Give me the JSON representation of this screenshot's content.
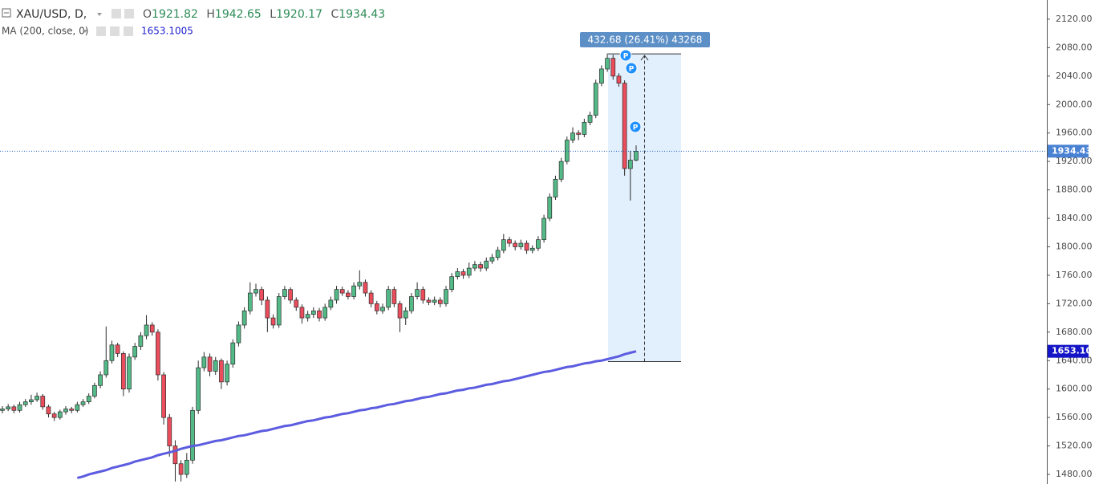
{
  "chart_data": {
    "type": "candlestick",
    "symbol": "XAU/USD, D,",
    "ohlc_labels": [
      "O",
      "H",
      "L",
      "C"
    ],
    "ma_name": "MA (200, close, 0)",
    "ma_price_label": "1653.10",
    "markers": [
      "P",
      "P",
      "P"
    ],
    "measure": {
      "from": 1638.6,
      "to": 2071.28,
      "label": "432.68 (26.41%) 43268"
    },
    "ylim": [
      1466.5,
      2147
    ],
    "yticks": [
      {
        "value": 1480,
        "label": "1480.00"
      },
      {
        "value": 1520,
        "label": "1520.00"
      },
      {
        "value": 1560,
        "label": "1560.00"
      },
      {
        "value": 1600,
        "label": "1600.00"
      },
      {
        "value": 1640,
        "label": "1640.00"
      },
      {
        "value": 1680,
        "label": "1680.00"
      },
      {
        "value": 1720,
        "label": "1720.00"
      },
      {
        "value": 1760,
        "label": "1760.00"
      },
      {
        "value": 1800,
        "label": "1800.00"
      },
      {
        "value": 1840,
        "label": "1840.00"
      },
      {
        "value": 1880,
        "label": "1880.00"
      },
      {
        "value": 1920,
        "label": "1920.00"
      },
      {
        "value": 1960,
        "label": "1960.00"
      },
      {
        "value": 2000,
        "label": "2000.00"
      },
      {
        "value": 2040,
        "label": "2040.00"
      },
      {
        "value": 2080,
        "label": "2080.00"
      },
      {
        "value": 2120,
        "label": "2120.00"
      }
    ],
    "up_color": "#53b987",
    "down_color": "#eb4d5c",
    "outline_color": "#2b2b2b",
    "series": [
      {
        "name": "XAU/USD",
        "values": [
          [
            1570,
            1576,
            1566,
            1572
          ],
          [
            1572,
            1579,
            1569,
            1575
          ],
          [
            1575,
            1578,
            1566,
            1570
          ],
          [
            1570,
            1582,
            1567,
            1578
          ],
          [
            1578,
            1586,
            1575,
            1582
          ],
          [
            1582,
            1592,
            1578,
            1585
          ],
          [
            1585,
            1595,
            1582,
            1590
          ],
          [
            1590,
            1593,
            1571,
            1575
          ],
          [
            1575,
            1578,
            1560,
            1565
          ],
          [
            1565,
            1568,
            1555,
            1560
          ],
          [
            1560,
            1571,
            1557,
            1568
          ],
          [
            1568,
            1576,
            1564,
            1572
          ],
          [
            1572,
            1575,
            1566,
            1570
          ],
          [
            1570,
            1582,
            1567,
            1578
          ],
          [
            1578,
            1586,
            1575,
            1582
          ],
          [
            1582,
            1594,
            1579,
            1590
          ],
          [
            1590,
            1609,
            1587,
            1605
          ],
          [
            1605,
            1625,
            1601,
            1620
          ],
          [
            1620,
            1688,
            1616,
            1640
          ],
          [
            1640,
            1668,
            1636,
            1662
          ],
          [
            1662,
            1665,
            1645,
            1650
          ],
          [
            1650,
            1653,
            1590,
            1600
          ],
          [
            1600,
            1650,
            1595,
            1645
          ],
          [
            1645,
            1665,
            1641,
            1660
          ],
          [
            1660,
            1680,
            1655,
            1675
          ],
          [
            1675,
            1704,
            1670,
            1690
          ],
          [
            1690,
            1694,
            1675,
            1680
          ],
          [
            1680,
            1684,
            1612,
            1620
          ],
          [
            1620,
            1624,
            1550,
            1560
          ],
          [
            1560,
            1565,
            1505,
            1520
          ],
          [
            1520,
            1528,
            1470,
            1495
          ],
          [
            1495,
            1500,
            1470,
            1480
          ],
          [
            1480,
            1510,
            1475,
            1500
          ],
          [
            1500,
            1575,
            1495,
            1570
          ],
          [
            1570,
            1640,
            1565,
            1630
          ],
          [
            1630,
            1652,
            1625,
            1645
          ],
          [
            1645,
            1650,
            1618,
            1625
          ],
          [
            1625,
            1645,
            1620,
            1640
          ],
          [
            1640,
            1643,
            1600,
            1610
          ],
          [
            1610,
            1640,
            1605,
            1635
          ],
          [
            1635,
            1670,
            1630,
            1665
          ],
          [
            1665,
            1695,
            1660,
            1690
          ],
          [
            1690,
            1715,
            1685,
            1710
          ],
          [
            1710,
            1750,
            1705,
            1735
          ],
          [
            1735,
            1748,
            1730,
            1740
          ],
          [
            1740,
            1744,
            1718,
            1725
          ],
          [
            1725,
            1730,
            1680,
            1700
          ],
          [
            1700,
            1705,
            1685,
            1690
          ],
          [
            1690,
            1735,
            1686,
            1730
          ],
          [
            1730,
            1745,
            1726,
            1740
          ],
          [
            1740,
            1743,
            1720,
            1725
          ],
          [
            1725,
            1729,
            1710,
            1715
          ],
          [
            1715,
            1719,
            1692,
            1700
          ],
          [
            1700,
            1710,
            1695,
            1705
          ],
          [
            1705,
            1715,
            1700,
            1710
          ],
          [
            1710,
            1714,
            1695,
            1700
          ],
          [
            1700,
            1720,
            1696,
            1715
          ],
          [
            1715,
            1730,
            1711,
            1725
          ],
          [
            1725,
            1745,
            1720,
            1740
          ],
          [
            1740,
            1744,
            1731,
            1735
          ],
          [
            1735,
            1739,
            1726,
            1730
          ],
          [
            1730,
            1750,
            1726,
            1745
          ],
          [
            1745,
            1767,
            1740,
            1750
          ],
          [
            1750,
            1754,
            1730,
            1735
          ],
          [
            1735,
            1739,
            1715,
            1720
          ],
          [
            1720,
            1724,
            1705,
            1710
          ],
          [
            1710,
            1720,
            1706,
            1715
          ],
          [
            1715,
            1745,
            1711,
            1740
          ],
          [
            1740,
            1744,
            1715,
            1720
          ],
          [
            1720,
            1724,
            1680,
            1700
          ],
          [
            1700,
            1715,
            1690,
            1710
          ],
          [
            1710,
            1735,
            1706,
            1730
          ],
          [
            1730,
            1750,
            1726,
            1740
          ],
          [
            1740,
            1744,
            1720,
            1725
          ],
          [
            1725,
            1729,
            1718,
            1722
          ],
          [
            1722,
            1730,
            1718,
            1725
          ],
          [
            1725,
            1729,
            1715,
            1720
          ],
          [
            1720,
            1745,
            1716,
            1740
          ],
          [
            1740,
            1763,
            1736,
            1758
          ],
          [
            1758,
            1770,
            1754,
            1765
          ],
          [
            1765,
            1769,
            1755,
            1760
          ],
          [
            1760,
            1778,
            1756,
            1770
          ],
          [
            1770,
            1780,
            1766,
            1775
          ],
          [
            1775,
            1779,
            1765,
            1770
          ],
          [
            1770,
            1785,
            1766,
            1780
          ],
          [
            1780,
            1790,
            1776,
            1785
          ],
          [
            1785,
            1800,
            1781,
            1795
          ],
          [
            1795,
            1818,
            1791,
            1810
          ],
          [
            1810,
            1814,
            1800,
            1805
          ],
          [
            1805,
            1809,
            1795,
            1800
          ],
          [
            1800,
            1810,
            1796,
            1805
          ],
          [
            1805,
            1809,
            1790,
            1795
          ],
          [
            1795,
            1802,
            1791,
            1798
          ],
          [
            1798,
            1815,
            1794,
            1810
          ],
          [
            1810,
            1845,
            1806,
            1840
          ],
          [
            1840,
            1875,
            1836,
            1870
          ],
          [
            1870,
            1900,
            1866,
            1895
          ],
          [
            1895,
            1925,
            1891,
            1920
          ],
          [
            1920,
            1955,
            1916,
            1950
          ],
          [
            1950,
            1968,
            1946,
            1960
          ],
          [
            1960,
            1964,
            1950,
            1958
          ],
          [
            1958,
            1980,
            1954,
            1975
          ],
          [
            1975,
            1990,
            1971,
            1985
          ],
          [
            1985,
            2035,
            1981,
            2030
          ],
          [
            2030,
            2055,
            2026,
            2050
          ],
          [
            2050,
            2072,
            2046,
            2065
          ],
          [
            2065,
            2070,
            2035,
            2040
          ],
          [
            2040,
            2044,
            2025,
            2030
          ],
          [
            2030,
            2034,
            1900,
            1910
          ],
          [
            1910,
            1935,
            1865,
            1921.82
          ],
          [
            1921.82,
            1942.65,
            1920.17,
            1934.43
          ]
        ]
      },
      {
        "name": "MA",
        "color": "#5c5ce0",
        "values": [
          null,
          null,
          null,
          null,
          null,
          null,
          null,
          null,
          null,
          null,
          null,
          null,
          null,
          1475,
          1477,
          1480,
          1482,
          1484,
          1486,
          1489,
          1491,
          1493,
          1495,
          1498,
          1500,
          1502,
          1504,
          1507,
          1509,
          1511,
          1513,
          1516,
          1518,
          1520,
          1521,
          1523,
          1525,
          1527,
          1528,
          1530,
          1532,
          1534,
          1535,
          1537,
          1539,
          1541,
          1542,
          1544,
          1546,
          1548,
          1549,
          1551,
          1553,
          1555,
          1556,
          1558,
          1560,
          1561,
          1563,
          1565,
          1566,
          1568,
          1570,
          1571,
          1573,
          1574,
          1576,
          1578,
          1579,
          1581,
          1583,
          1584,
          1586,
          1588,
          1589,
          1591,
          1593,
          1594,
          1596,
          1598,
          1599,
          1601,
          1602,
          1604,
          1606,
          1607,
          1609,
          1611,
          1612,
          1614,
          1616,
          1618,
          1620,
          1622,
          1624,
          1625,
          1627,
          1629,
          1631,
          1632,
          1634,
          1636,
          1637,
          1639,
          1640,
          1642,
          1644,
          1646,
          1649,
          1651,
          1653.1005
        ]
      }
    ]
  }
}
